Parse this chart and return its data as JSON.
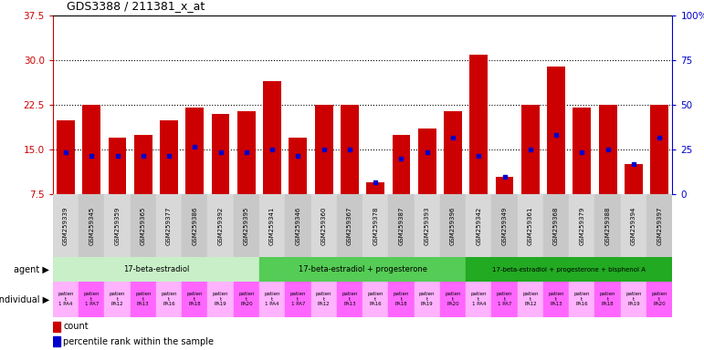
{
  "title": "GDS3388 / 211381_x_at",
  "gsm_ids": [
    "GSM259339",
    "GSM259345",
    "GSM259359",
    "GSM259365",
    "GSM259377",
    "GSM259386",
    "GSM259392",
    "GSM259395",
    "GSM259341",
    "GSM259346",
    "GSM259360",
    "GSM259367",
    "GSM259378",
    "GSM259387",
    "GSM259393",
    "GSM259396",
    "GSM259342",
    "GSM259349",
    "GSM259361",
    "GSM259368",
    "GSM259379",
    "GSM259388",
    "GSM259394",
    "GSM259397"
  ],
  "count_values": [
    20.0,
    22.5,
    17.0,
    17.5,
    20.0,
    22.0,
    21.0,
    21.5,
    26.5,
    17.0,
    22.5,
    22.5,
    9.5,
    17.5,
    18.5,
    21.5,
    31.0,
    10.5,
    22.5,
    29.0,
    22.0,
    22.5,
    12.5,
    22.5
  ],
  "percentile_values": [
    14.5,
    14.0,
    14.0,
    14.0,
    14.0,
    15.5,
    14.5,
    14.5,
    15.0,
    14.0,
    15.0,
    15.0,
    9.5,
    13.5,
    14.5,
    17.0,
    14.0,
    10.5,
    15.0,
    17.5,
    14.5,
    15.0,
    12.5,
    17.0
  ],
  "individual_labels": [
    "patien\nt\n1 PA4",
    "patien\nt\n1 PA7",
    "patien\nt\nPA12",
    "patien\nt\nPA13",
    "patien\nt\nPA16",
    "patien\nt\nPA18",
    "patien\nt\nPA19",
    "patien\nt\nPA20",
    "patien\nt\n1 PA4",
    "patien\nt\n1 PA7",
    "patien\nt\nPA12",
    "patien\nt\nPA13",
    "patien\nt\nPA16",
    "patien\nt\nPA18",
    "patien\nt\nPA19",
    "patien\nt\nPA20",
    "patien\nt\n1 PA4",
    "patien\nt\n1 PA7",
    "patien\nt\nPA12",
    "patien\nt\nPA13",
    "patien\nt\nPA16",
    "patien\nt\nPA18",
    "patien\nt\nPA19",
    "patien\nt\nPA20"
  ],
  "agents": [
    {
      "label": "17-beta-estradiol",
      "start": 0,
      "end": 7,
      "color": "#C8EFC8"
    },
    {
      "label": "17-beta-estradiol + progesterone",
      "start": 8,
      "end": 15,
      "color": "#55CC55"
    },
    {
      "label": "17-beta-estradiol + progesterone + bisphenol A",
      "start": 16,
      "end": 23,
      "color": "#22AA22"
    }
  ],
  "indiv_colors": [
    "#FFBBFF",
    "#FF88FF",
    "#FF55FF",
    "#FF22FF",
    "#FF00FF",
    "#EE00EE",
    "#DD00DD",
    "#CC00CC"
  ],
  "ylim_left": [
    7.5,
    37.5
  ],
  "ylim_right": [
    0,
    100
  ],
  "yticks_left": [
    7.5,
    15.0,
    22.5,
    30.0,
    37.5
  ],
  "yticks_right": [
    0,
    25,
    50,
    75,
    100
  ],
  "bar_color": "#CC0000",
  "dot_color": "#0000CC",
  "xlabel_bg_even": "#D8D8D8",
  "xlabel_bg_odd": "#C8C8C8"
}
